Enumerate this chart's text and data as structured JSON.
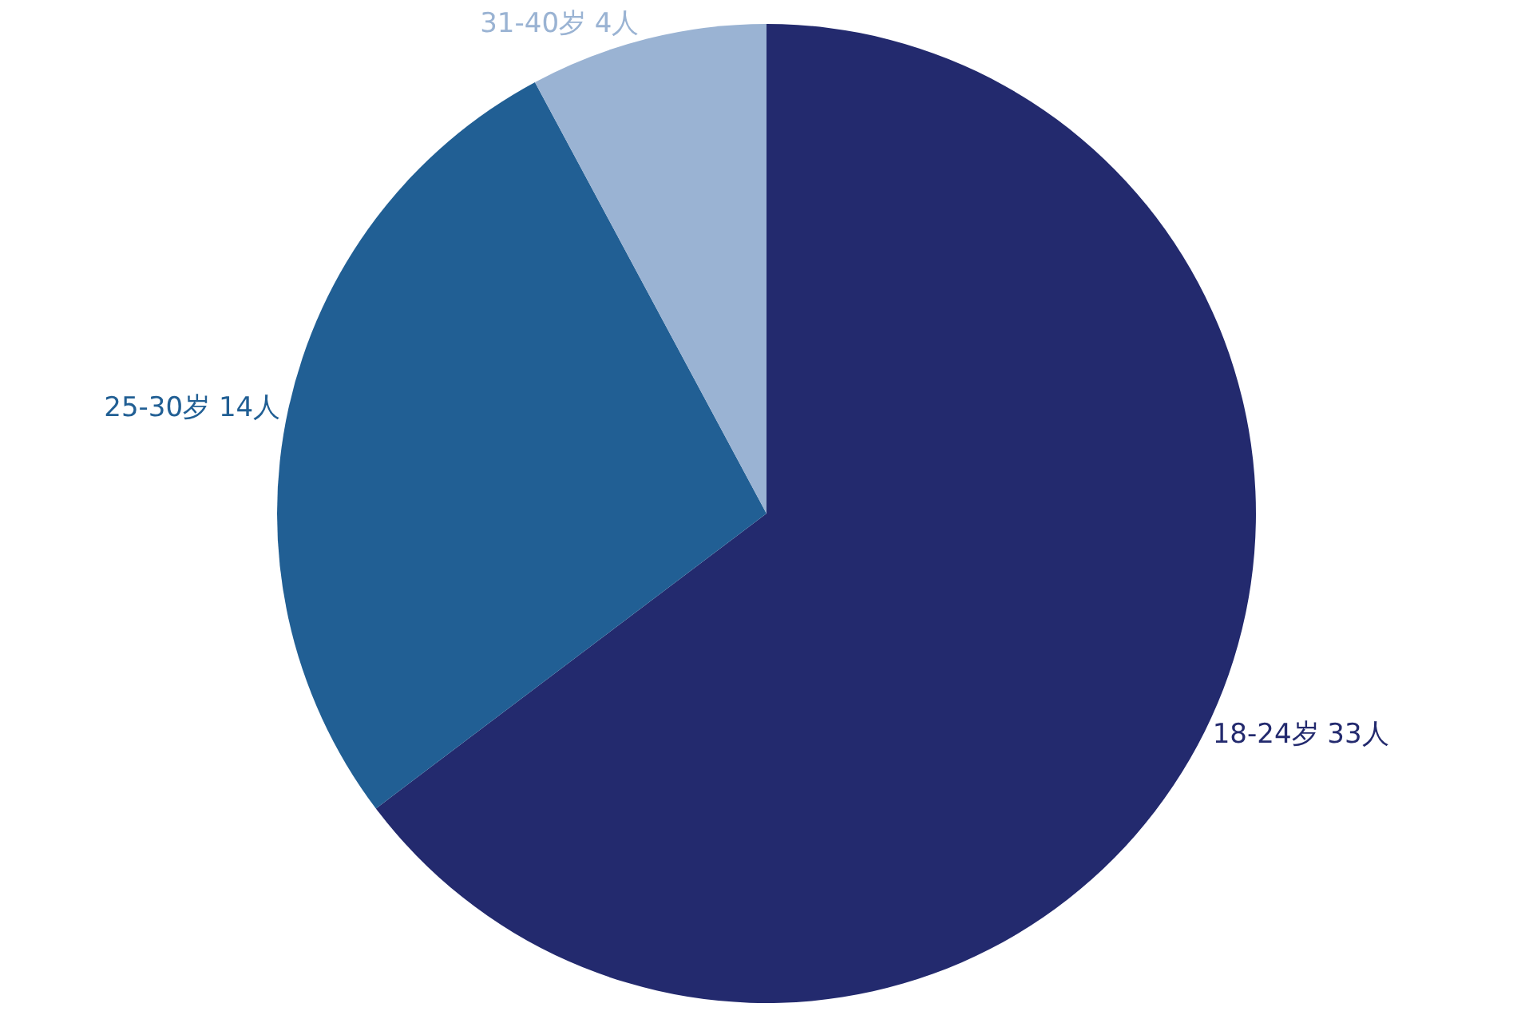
{
  "chart_data": {
    "type": "pie",
    "categories": [
      "18-24岁",
      "25-30岁",
      "31-40岁"
    ],
    "values": [
      33,
      14,
      4
    ],
    "value_labels": [
      "33人",
      "14人",
      "4人"
    ],
    "colors": [
      "#232a6e",
      "#215f94",
      "#9ab3d3"
    ],
    "legend": false
  }
}
